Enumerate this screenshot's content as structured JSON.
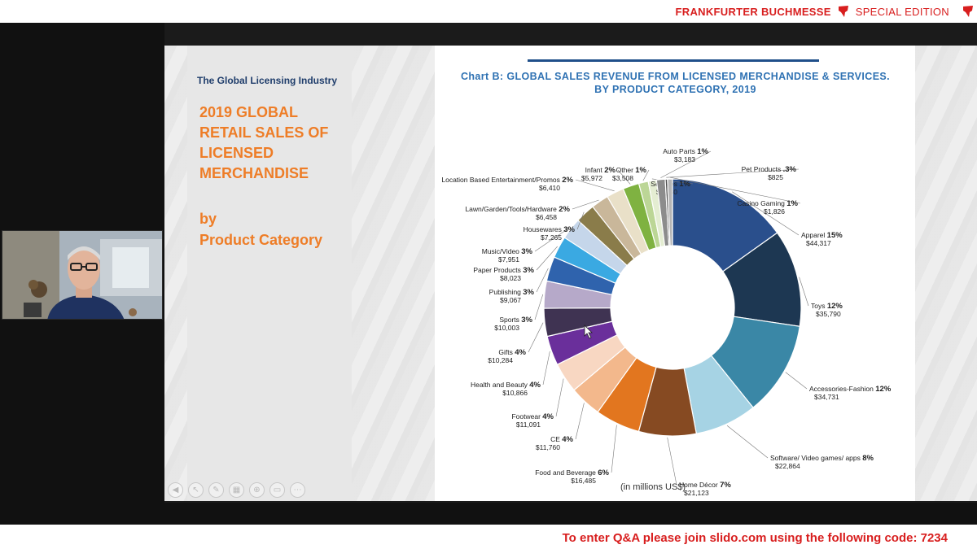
{
  "banner": {
    "brand": "FRANKFURTER BUCHMESSE",
    "edition": "SPECIAL EDITION",
    "accent_color": "#d81e1e"
  },
  "footer": {
    "slido_notice": "To enter Q&A please join slido.com using the following code: 7234"
  },
  "slide": {
    "industry_label": "The Global Licensing Industry",
    "heading_lines": [
      "2019 GLOBAL",
      "RETAIL SALES OF",
      "LICENSED",
      "MERCHANDISE"
    ],
    "subheading_lines": [
      "by",
      "Product Category"
    ],
    "heading_color": "#ee7d27",
    "toolbar_icons": [
      "back-icon",
      "pointer-icon",
      "pen-icon",
      "grid-icon",
      "zoom-icon",
      "subtitles-icon",
      "more-icon"
    ]
  },
  "chart_data": {
    "type": "pie",
    "title_lines": [
      "Chart B: GLOBAL SALES REVENUE FROM LICENSED MERCHANDISE & SERVICES.",
      "BY PRODUCT CATEGORY, 2019"
    ],
    "units": "(in millions US$)",
    "slices": [
      {
        "label": "Apparel",
        "pct": "15%",
        "value": 44317,
        "value_text": "$44,317",
        "color": "#2a4f8c"
      },
      {
        "label": "Toys",
        "pct": "12%",
        "value": 35790,
        "value_text": "$35,790",
        "color": "#1d3752"
      },
      {
        "label": "Accessories-Fashion",
        "pct": "12%",
        "value": 34731,
        "value_text": "$34,731",
        "color": "#3a87a6"
      },
      {
        "label": "Software/ Video games/ apps",
        "pct": "8%",
        "value": 22864,
        "value_text": "$22,864",
        "color": "#a6d3e4"
      },
      {
        "label": "Home Décor",
        "pct": "7%",
        "value": 21123,
        "value_text": "$21,123",
        "color": "#864a22"
      },
      {
        "label": "Food and Beverage",
        "pct": "6%",
        "value": 16485,
        "value_text": "$16,485",
        "color": "#e2761f"
      },
      {
        "label": "CE",
        "pct": "4%",
        "value": 11760,
        "value_text": "$11,760",
        "color": "#f3b88c"
      },
      {
        "label": "Footwear",
        "pct": "4%",
        "value": 11091,
        "value_text": "$11,091",
        "color": "#f8d7c2"
      },
      {
        "label": "Health and Beauty",
        "pct": "4%",
        "value": 10866,
        "value_text": "$10,866",
        "color": "#6a2f9b"
      },
      {
        "label": "Gifts",
        "pct": "4%",
        "value": 10284,
        "value_text": "$10,284",
        "color": "#3f3352"
      },
      {
        "label": "Sports",
        "pct": "3%",
        "value": 10003,
        "value_text": "$10,003",
        "color": "#b6a9c9"
      },
      {
        "label": "Publishing",
        "pct": "3%",
        "value": 9067,
        "value_text": "$9,067",
        "color": "#2f63ad"
      },
      {
        "label": "Paper Products",
        "pct": "3%",
        "value": 8023,
        "value_text": "$8,023",
        "color": "#3aa9e2"
      },
      {
        "label": "Music/Video",
        "pct": "3%",
        "value": 7951,
        "value_text": "$7,951",
        "color": "#c5d6ea"
      },
      {
        "label": "Housewares",
        "pct": "3%",
        "value": 7265,
        "value_text": "$7,265",
        "color": "#8a7c4a"
      },
      {
        "label": "Lawn/Garden/Tools/Hardware",
        "pct": "2%",
        "value": 6458,
        "value_text": "$6,458",
        "color": "#c9b79a"
      },
      {
        "label": "Location Based Entertainment/Promos",
        "pct": "2%",
        "value": 6410,
        "value_text": "$6,410",
        "color": "#e9e0c8"
      },
      {
        "label": "Infant",
        "pct": "2%",
        "value": 5972,
        "value_text": "$5,972",
        "color": "#7fb241"
      },
      {
        "label": "Other",
        "pct": "1%",
        "value": 3508,
        "value_text": "$3,508",
        "color": "#bcd696"
      },
      {
        "label": "Services",
        "pct": "1%",
        "value": 3030,
        "value_text": "$3,030",
        "color": "#e4edd2"
      },
      {
        "label": "Auto Parts",
        "pct": "1%",
        "value": 3183,
        "value_text": "$3,183",
        "color": "#8c8c8c"
      },
      {
        "label": "Pet Products",
        "pct": ".3%",
        "value": 825,
        "value_text": "$825",
        "color": "#4d4d4d"
      },
      {
        "label": "Casino Gaming",
        "pct": "1%",
        "value": 1826,
        "value_text": "$1,826",
        "color": "#b5b5b5"
      }
    ]
  }
}
